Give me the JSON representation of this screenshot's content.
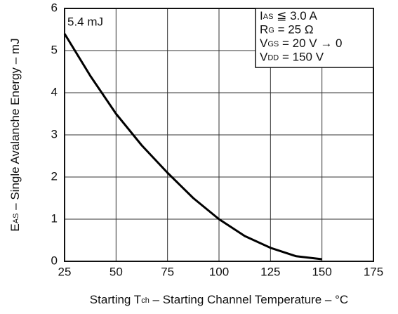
{
  "chart_data": {
    "type": "line",
    "x_label": {
      "symbol": "Starting T",
      "subscript": "ch",
      "rest": " – Starting Channel Temperature – °C"
    },
    "y_label": {
      "symbol": "E",
      "subscript": "AS",
      "rest": " – Single Avalanche Energy – mJ"
    },
    "x": [
      25,
      37.5,
      50,
      62.5,
      75,
      87.5,
      100,
      112.5,
      125,
      137.5,
      150
    ],
    "series": [
      {
        "color": "#000000",
        "values": [
          5.4,
          4.4,
          3.5,
          2.75,
          2.1,
          1.5,
          1.0,
          0.6,
          0.32,
          0.12,
          0.05
        ]
      }
    ],
    "xlim": [
      25,
      175
    ],
    "xticks": [
      25,
      50,
      75,
      100,
      125,
      150,
      175
    ],
    "ylim": [
      0,
      6
    ],
    "yticks": [
      0,
      1,
      2,
      3,
      4,
      5,
      6
    ],
    "grid": true,
    "annotation": "5.4 mJ",
    "conditions": [
      {
        "symbol": "I",
        "subscript": "AS",
        "rest": " ≦ 3.0 A"
      },
      {
        "symbol": "R",
        "subscript": "G",
        "rest": " = 25 Ω"
      },
      {
        "symbol": "V",
        "subscript": "GS",
        "rest": " = 20 V → 0"
      },
      {
        "symbol": "V",
        "subscript": "DD",
        "rest": " = 150 V"
      }
    ]
  }
}
